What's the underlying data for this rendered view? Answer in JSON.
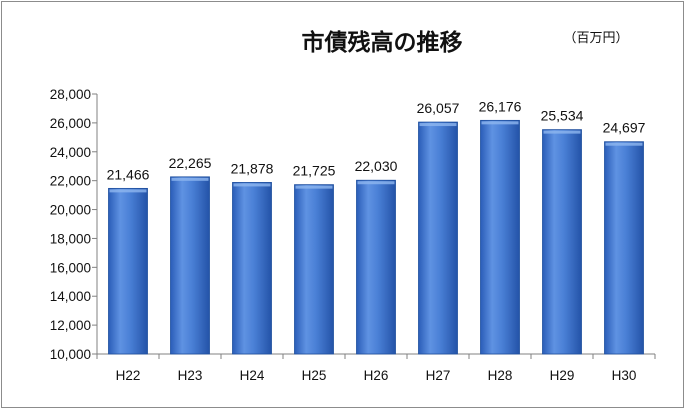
{
  "chart_data": {
    "type": "bar",
    "title": "市債残高の推移",
    "unit_label": "（百万円）",
    "categories": [
      "H22",
      "H23",
      "H24",
      "H25",
      "H26",
      "H27",
      "H28",
      "H29",
      "H30"
    ],
    "values": [
      21466,
      22265,
      21878,
      21725,
      22030,
      26057,
      26176,
      25534,
      24697
    ],
    "data_labels": [
      "21,466",
      "22,265",
      "21,878",
      "21,725",
      "22,030",
      "26,057",
      "26,176",
      "25,534",
      "24,697"
    ],
    "ylim": [
      10000,
      28000
    ],
    "y_ticks": [
      10000,
      12000,
      14000,
      16000,
      18000,
      20000,
      22000,
      24000,
      26000,
      28000
    ],
    "y_tick_labels": [
      "10,000",
      "12,000",
      "14,000",
      "16,000",
      "18,000",
      "20,000",
      "22,000",
      "24,000",
      "26,000",
      "28,000"
    ],
    "grid": false,
    "legend": "none",
    "colors": {
      "bar_light": "#6f9ee6",
      "bar_mid": "#3a70cc",
      "bar_dark": "#1f4f9e",
      "axis": "#808080",
      "frame": "#8c8c8c"
    }
  }
}
